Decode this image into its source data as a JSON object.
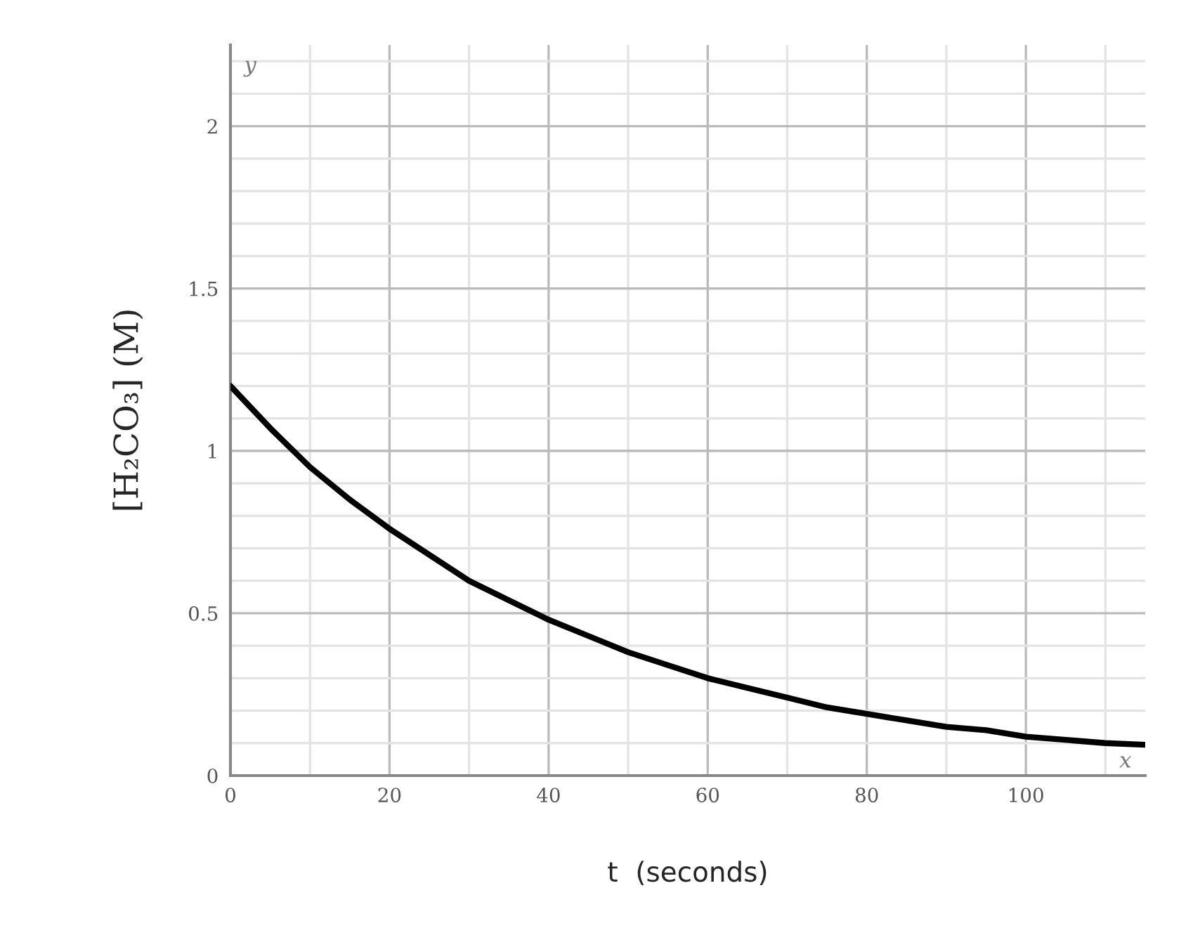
{
  "chart_data": {
    "type": "line",
    "xlabel": "t  (seconds)",
    "ylabel": "[H₂CO₃] (M)",
    "x": [
      0,
      5,
      10,
      15,
      20,
      25,
      30,
      35,
      40,
      45,
      50,
      55,
      60,
      65,
      70,
      75,
      80,
      85,
      90,
      95,
      100,
      105,
      110,
      115
    ],
    "series": [
      {
        "color": "#000000",
        "values": [
          1.2,
          1.07,
          0.95,
          0.85,
          0.76,
          0.68,
          0.6,
          0.54,
          0.48,
          0.43,
          0.38,
          0.34,
          0.3,
          0.27,
          0.24,
          0.21,
          0.19,
          0.17,
          0.15,
          0.14,
          0.12,
          0.11,
          0.1,
          0.095
        ]
      }
    ],
    "xlim": [
      0,
      115
    ],
    "ylim": [
      0,
      2.25
    ],
    "xticks": [
      0,
      20,
      40,
      60,
      80,
      100
    ],
    "yticks": [
      0,
      0.5,
      1,
      1.5,
      2
    ],
    "grid": true,
    "marker": "none",
    "line_style": "solid",
    "annotations": [
      "y",
      "x"
    ]
  }
}
